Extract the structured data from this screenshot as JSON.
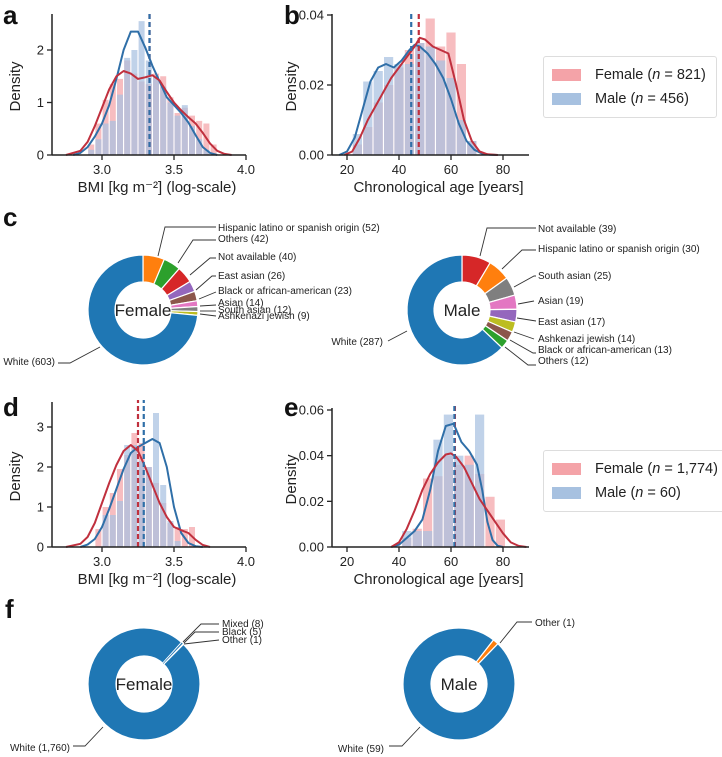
{
  "colors": {
    "female_bar": "#f4a3a8",
    "male_bar": "#a7c1e0",
    "female_line": "#c0303e",
    "male_line": "#2f6fa8",
    "white": "#1f77b4",
    "orange": "#ff7f0e",
    "green": "#2ca02c",
    "red": "#d62728",
    "purple": "#9467bd",
    "brown": "#8c564b",
    "pink": "#e377c2",
    "gray": "#7f7f7f",
    "olive": "#bcbd22",
    "cyan": "#17becf"
  },
  "panel_letters": [
    "a",
    "b",
    "c",
    "d",
    "e",
    "f"
  ],
  "legends": [
    {
      "items": [
        {
          "label_pre": "Female (",
          "label_n": "n",
          "label_post": " = 821)",
          "color": "female_bar"
        },
        {
          "label_pre": "Male (",
          "label_n": "n",
          "label_post": " = 456)",
          "color": "male_bar"
        }
      ]
    },
    {
      "items": [
        {
          "label_pre": "Female (",
          "label_n": "n",
          "label_post": " = 1,774)",
          "color": "female_bar"
        },
        {
          "label_pre": "Male (",
          "label_n": "n",
          "label_post": " = 60)",
          "color": "male_bar"
        }
      ]
    }
  ],
  "chart_data": [
    {
      "id": "a",
      "type": "bar",
      "subtype": "histogram-kde",
      "xlabel": "BMI [kg m⁻²] (log-scale)",
      "ylabel": "Density",
      "xlim": [
        2.65,
        4.0
      ],
      "ylim": [
        0,
        2.6
      ],
      "xticks": [
        3.0,
        3.5,
        4.0
      ],
      "xticklabels": [
        "3.0",
        "3.5",
        "4.0"
      ],
      "yticks": [
        0,
        1,
        2
      ],
      "yticklabels": [
        "0",
        "1",
        "2"
      ],
      "bin_width": 0.05,
      "series": [
        {
          "name": "Female",
          "bin_starts": [
            2.9,
            2.95,
            3.0,
            3.05,
            3.1,
            3.15,
            3.2,
            3.25,
            3.3,
            3.35,
            3.4,
            3.45,
            3.5,
            3.55,
            3.6,
            3.65,
            3.7,
            3.75
          ],
          "values": [
            0.2,
            0.6,
            1.05,
            1.35,
            1.45,
            1.8,
            1.55,
            1.4,
            1.35,
            1.55,
            1.5,
            1.1,
            0.8,
            0.9,
            0.75,
            0.65,
            0.6,
            0.2
          ],
          "kde_x": [
            2.75,
            2.85,
            2.9,
            2.95,
            3.0,
            3.05,
            3.1,
            3.15,
            3.2,
            3.25,
            3.3,
            3.35,
            3.4,
            3.45,
            3.5,
            3.55,
            3.6,
            3.65,
            3.7,
            3.75,
            3.8,
            3.85,
            3.9
          ],
          "kde_y": [
            0.0,
            0.08,
            0.25,
            0.55,
            0.9,
            1.25,
            1.5,
            1.6,
            1.55,
            1.45,
            1.48,
            1.52,
            1.42,
            1.2,
            1.0,
            0.85,
            0.72,
            0.6,
            0.42,
            0.22,
            0.08,
            0.02,
            0.0
          ],
          "mean": 3.33
        },
        {
          "name": "Male",
          "bin_starts": [
            2.9,
            2.95,
            3.0,
            3.05,
            3.1,
            3.15,
            3.2,
            3.25,
            3.3,
            3.35,
            3.4,
            3.45,
            3.5,
            3.55,
            3.6,
            3.65,
            3.7
          ],
          "values": [
            0.1,
            0.3,
            0.6,
            0.65,
            1.15,
            1.85,
            2.0,
            2.55,
            1.8,
            1.5,
            1.3,
            1.0,
            0.75,
            0.95,
            0.55,
            0.3,
            0.1
          ],
          "kde_x": [
            2.8,
            2.85,
            2.9,
            2.95,
            3.0,
            3.05,
            3.1,
            3.15,
            3.2,
            3.25,
            3.3,
            3.35,
            3.4,
            3.45,
            3.5,
            3.55,
            3.6,
            3.65,
            3.7,
            3.75,
            3.8
          ],
          "kde_y": [
            0.0,
            0.04,
            0.15,
            0.35,
            0.6,
            0.95,
            1.45,
            2.0,
            2.35,
            2.35,
            2.05,
            1.7,
            1.4,
            1.1,
            0.95,
            0.8,
            0.62,
            0.38,
            0.15,
            0.04,
            0.0
          ],
          "mean": 3.33
        }
      ]
    },
    {
      "id": "b",
      "type": "bar",
      "subtype": "histogram-kde",
      "xlabel": "Chronological age [years]",
      "ylabel": "Density",
      "xlim": [
        15,
        90
      ],
      "ylim": [
        0,
        0.04
      ],
      "xticks": [
        20,
        40,
        60,
        80
      ],
      "xticklabels": [
        "20",
        "40",
        "60",
        "80"
      ],
      "yticks": [
        0,
        0.02,
        0.04
      ],
      "yticklabels": [
        "0.00",
        "0.02",
        "0.04"
      ],
      "bin_width": 4,
      "series": [
        {
          "name": "Female",
          "bin_starts": [
            22,
            26,
            30,
            34,
            38,
            42,
            46,
            50,
            54,
            58,
            62,
            66
          ],
          "values": [
            0.003,
            0.008,
            0.015,
            0.02,
            0.025,
            0.03,
            0.032,
            0.039,
            0.031,
            0.035,
            0.026,
            0.004
          ],
          "kde_x": [
            19,
            22,
            25,
            28,
            31,
            34,
            37,
            40,
            43,
            46,
            48,
            50,
            53,
            56,
            59,
            62,
            65,
            68,
            71,
            74,
            78
          ],
          "kde_y": [
            0.0,
            0.001,
            0.005,
            0.01,
            0.014,
            0.018,
            0.022,
            0.025,
            0.028,
            0.031,
            0.0335,
            0.033,
            0.031,
            0.03,
            0.029,
            0.02,
            0.01,
            0.004,
            0.001,
            0.0002,
            0.0
          ],
          "mean": 47.6
        },
        {
          "name": "Male",
          "bin_starts": [
            22,
            26,
            30,
            34,
            38,
            42,
            46,
            50,
            54,
            58,
            62,
            66
          ],
          "values": [
            0.006,
            0.021,
            0.024,
            0.028,
            0.026,
            0.026,
            0.032,
            0.031,
            0.027,
            0.022,
            0.01,
            0.004
          ],
          "kde_x": [
            17,
            20,
            23,
            26,
            29,
            32,
            35,
            38,
            41,
            44,
            46,
            48,
            51,
            54,
            57,
            60,
            63,
            66,
            69,
            72,
            75,
            78
          ],
          "kde_y": [
            0.0,
            0.001,
            0.005,
            0.013,
            0.021,
            0.025,
            0.026,
            0.025,
            0.027,
            0.03,
            0.0315,
            0.031,
            0.029,
            0.026,
            0.022,
            0.016,
            0.009,
            0.004,
            0.0015,
            0.0004,
            0.0001,
            0.0
          ],
          "mean": 44.7
        }
      ]
    },
    {
      "id": "c-female",
      "type": "pie",
      "subtype": "donut",
      "center_label": "Female",
      "slices": [
        {
          "label": "White (603)",
          "value": 603,
          "color": "white"
        },
        {
          "label": "Ashkenazi jewish (9)",
          "value": 9,
          "color": "olive"
        },
        {
          "label": "South asian (12)",
          "value": 12,
          "color": "gray"
        },
        {
          "label": "Asian (14)",
          "value": 14,
          "color": "pink"
        },
        {
          "label": "Black or african-american (23)",
          "value": 23,
          "color": "brown"
        },
        {
          "label": "East asian (26)",
          "value": 26,
          "color": "purple"
        },
        {
          "label": "Not available (40)",
          "value": 40,
          "color": "red"
        },
        {
          "label": "Others (42)",
          "value": 42,
          "color": "green"
        },
        {
          "label": "Hispanic latino or spanish origin (52)",
          "value": 52,
          "color": "orange"
        }
      ]
    },
    {
      "id": "c-male",
      "type": "pie",
      "subtype": "donut",
      "center_label": "Male",
      "slices": [
        {
          "label": "White (287)",
          "value": 287,
          "color": "white"
        },
        {
          "label": "Others (12)",
          "value": 12,
          "color": "green"
        },
        {
          "label": "Black or african-american (13)",
          "value": 13,
          "color": "brown"
        },
        {
          "label": "Ashkenazi jewish (14)",
          "value": 14,
          "color": "olive"
        },
        {
          "label": "East asian (17)",
          "value": 17,
          "color": "purple"
        },
        {
          "label": "Asian (19)",
          "value": 19,
          "color": "pink"
        },
        {
          "label": "South asian (25)",
          "value": 25,
          "color": "gray"
        },
        {
          "label": "Hispanic latino or spanish origin (30)",
          "value": 30,
          "color": "orange"
        },
        {
          "label": "Not available (39)",
          "value": 39,
          "color": "red"
        }
      ]
    },
    {
      "id": "d",
      "type": "bar",
      "subtype": "histogram-kde",
      "xlabel": "BMI [kg m⁻²] (log-scale)",
      "ylabel": "Density",
      "xlim": [
        2.65,
        4.0
      ],
      "ylim": [
        0,
        3.5
      ],
      "xticks": [
        3.0,
        3.5,
        4.0
      ],
      "xticklabels": [
        "3.0",
        "3.5",
        "4.0"
      ],
      "yticks": [
        0,
        1,
        2,
        3
      ],
      "yticklabels": [
        "0",
        "1",
        "2",
        "3"
      ],
      "bin_width": 0.05,
      "series": [
        {
          "name": "Female",
          "bin_starts": [
            2.95,
            3.0,
            3.05,
            3.1,
            3.15,
            3.2,
            3.25,
            3.3,
            3.35,
            3.4,
            3.45,
            3.5,
            3.55,
            3.6
          ],
          "values": [
            0.45,
            1.0,
            1.35,
            1.95,
            2.3,
            2.85,
            2.6,
            2.0,
            1.6,
            1.1,
            0.6,
            0.5,
            0.45,
            0.5
          ],
          "kde_x": [
            2.75,
            2.85,
            2.9,
            2.95,
            3.0,
            3.05,
            3.1,
            3.15,
            3.2,
            3.25,
            3.3,
            3.35,
            3.4,
            3.45,
            3.5,
            3.55,
            3.6,
            3.65,
            3.7,
            3.75
          ],
          "kde_y": [
            0.0,
            0.08,
            0.25,
            0.6,
            1.1,
            1.6,
            2.05,
            2.4,
            2.55,
            2.4,
            2.0,
            1.55,
            1.1,
            0.75,
            0.5,
            0.42,
            0.35,
            0.18,
            0.05,
            0.0
          ],
          "mean": 3.25
        },
        {
          "name": "Male",
          "bin_starts": [
            3.0,
            3.05,
            3.1,
            3.15,
            3.2,
            3.25,
            3.3,
            3.35,
            3.4,
            3.45,
            3.5
          ],
          "values": [
            0.8,
            0.8,
            1.15,
            2.55,
            2.55,
            2.15,
            2.0,
            3.35,
            1.55,
            0.65,
            0.15
          ],
          "kde_x": [
            2.85,
            2.9,
            2.95,
            3.0,
            3.05,
            3.1,
            3.15,
            3.2,
            3.25,
            3.3,
            3.35,
            3.4,
            3.45,
            3.5,
            3.55,
            3.6,
            3.65,
            3.7
          ],
          "kde_y": [
            0.0,
            0.06,
            0.2,
            0.5,
            0.95,
            1.45,
            1.95,
            2.35,
            2.5,
            2.6,
            2.7,
            2.6,
            2.0,
            1.0,
            0.35,
            0.1,
            0.02,
            0.0
          ],
          "mean": 3.29
        }
      ]
    },
    {
      "id": "e",
      "type": "bar",
      "subtype": "histogram-kde",
      "xlabel": "Chronological age [years]",
      "ylabel": "Density",
      "xlim": [
        15,
        90
      ],
      "ylim": [
        0,
        0.06
      ],
      "xticks": [
        20,
        40,
        60,
        80
      ],
      "xticklabels": [
        "20",
        "40",
        "60",
        "80"
      ],
      "yticks": [
        0,
        0.02,
        0.04,
        0.06
      ],
      "yticklabels": [
        "0.00",
        "0.02",
        "0.04",
        "0.06"
      ],
      "bin_width": 4,
      "series": [
        {
          "name": "Female",
          "bin_starts": [
            41,
            45,
            49,
            53,
            57,
            61,
            65,
            69,
            73,
            77
          ],
          "values": [
            0.004,
            0.008,
            0.03,
            0.031,
            0.04,
            0.036,
            0.04,
            0.032,
            0.022,
            0.012
          ],
          "kde_x": [
            37,
            40,
            43,
            46,
            49,
            52,
            55,
            58,
            60,
            62,
            65,
            68,
            71,
            74,
            77,
            80,
            83,
            86,
            89
          ],
          "kde_y": [
            0.0,
            0.002,
            0.008,
            0.016,
            0.025,
            0.032,
            0.037,
            0.0405,
            0.041,
            0.0395,
            0.035,
            0.028,
            0.021,
            0.016,
            0.011,
            0.006,
            0.002,
            0.0005,
            0.0
          ],
          "mean": 61.5
        },
        {
          "name": "Male",
          "bin_starts": [
            41,
            45,
            49,
            53,
            57,
            61,
            65,
            69
          ],
          "values": [
            0.007,
            0.007,
            0.007,
            0.047,
            0.058,
            0.04,
            0.036,
            0.058
          ],
          "kde_x": [
            37,
            40,
            43,
            46,
            49,
            52,
            55,
            58,
            61,
            64,
            67,
            70,
            72,
            74,
            76,
            78,
            80
          ],
          "kde_y": [
            0.0,
            0.001,
            0.004,
            0.007,
            0.012,
            0.025,
            0.042,
            0.053,
            0.054,
            0.046,
            0.042,
            0.036,
            0.025,
            0.011,
            0.003,
            0.0005,
            0.0
          ],
          "mean": 61.3
        }
      ]
    },
    {
      "id": "f-female",
      "type": "pie",
      "subtype": "donut",
      "center_label": "Female",
      "slices": [
        {
          "label": "White (1,760)",
          "value": 1760,
          "color": "white"
        },
        {
          "label": "Other (1)",
          "value": 1,
          "color": "green"
        },
        {
          "label": "Black (5)",
          "value": 5,
          "color": "white"
        },
        {
          "label": "Mixed (8)",
          "value": 8,
          "color": "white"
        }
      ]
    },
    {
      "id": "f-male",
      "type": "pie",
      "subtype": "donut",
      "center_label": "Male",
      "slices": [
        {
          "label": "White (59)",
          "value": 59,
          "color": "white"
        },
        {
          "label": "Other (1)",
          "value": 1,
          "color": "orange"
        }
      ]
    }
  ]
}
